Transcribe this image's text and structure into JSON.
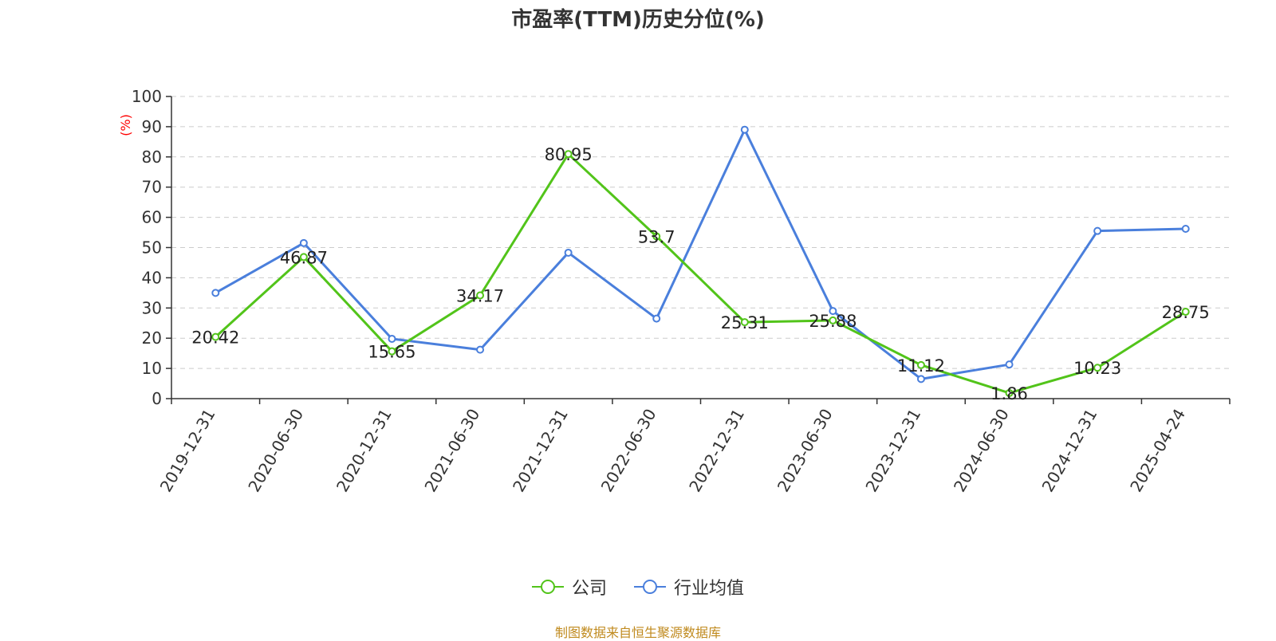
{
  "chart_data": {
    "type": "line",
    "title": "市盈率(TTM)历史分位(%)",
    "ylabel": "(%)",
    "ylim": [
      0,
      100
    ],
    "yticks": [
      0,
      10,
      20,
      30,
      40,
      50,
      60,
      70,
      80,
      90,
      100
    ],
    "categories": [
      "2019-12-31",
      "2020-06-30",
      "2020-12-31",
      "2021-06-30",
      "2021-12-31",
      "2022-06-30",
      "2022-12-31",
      "2023-06-30",
      "2023-12-31",
      "2024-06-30",
      "2024-12-31",
      "2025-04-24"
    ],
    "grid": true,
    "legend_position": "bottom-center",
    "series": [
      {
        "name": "公司",
        "color": "#52c41a",
        "values": [
          20.42,
          46.87,
          15.65,
          34.17,
          80.95,
          53.7,
          25.31,
          25.88,
          11.12,
          1.86,
          10.23,
          28.75
        ],
        "labels": [
          "20.42",
          "46.87",
          "15.65",
          "34.17",
          "80.95",
          "53.7",
          "25.31",
          "25.88",
          "11.12",
          "1.86",
          "10.23",
          "28.75"
        ]
      },
      {
        "name": "行业均值",
        "color": "#4a7fdc",
        "values": [
          35.0,
          51.5,
          19.8,
          16.2,
          48.3,
          26.5,
          89.0,
          29.0,
          6.5,
          11.3,
          55.5,
          56.2
        ]
      }
    ]
  },
  "source": "制图数据来自恒生聚源数据库"
}
